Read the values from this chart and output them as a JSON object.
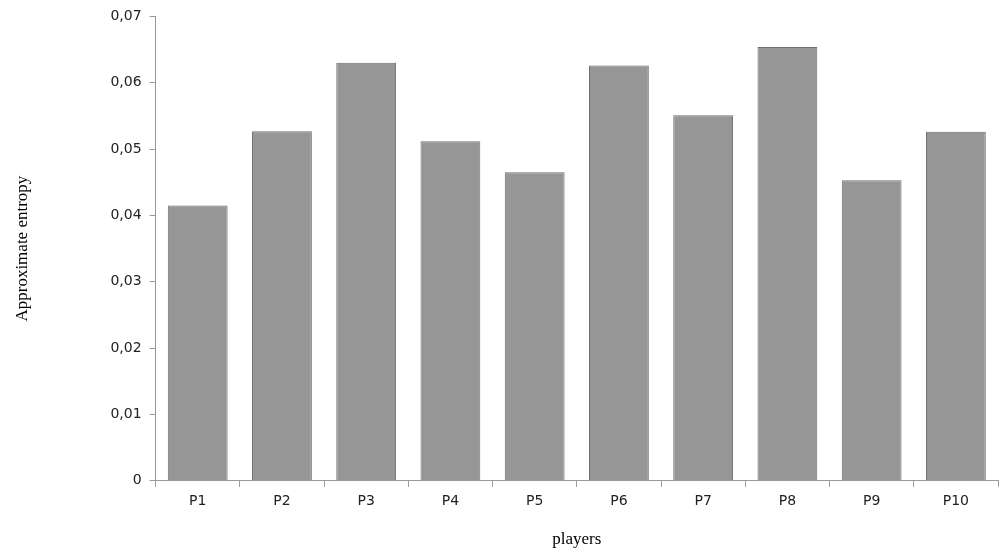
{
  "chart_data": {
    "type": "bar",
    "xlabel": "players",
    "ylabel": "Approximate entropy",
    "categories": [
      "P1",
      "P2",
      "P3",
      "P4",
      "P5",
      "P6",
      "P7",
      "P8",
      "P9",
      "P10"
    ],
    "values": [
      0.0415,
      0.0527,
      0.063,
      0.0512,
      0.0465,
      0.0626,
      0.0551,
      0.0654,
      0.0453,
      0.0526
    ],
    "color": "#969696",
    "ylim": [
      0,
      0.07
    ],
    "yticks": [
      0,
      {
        "value": 0.01,
        "label": "0,01"
      },
      {
        "value": 0.02,
        "label": "0,02"
      },
      {
        "value": 0.03,
        "label": "0,03"
      },
      {
        "value": 0.04,
        "label": "0,04"
      },
      {
        "value": 0.05,
        "label": "0,05"
      },
      {
        "value": 0.06,
        "label": "0,06"
      },
      {
        "value": 0.07,
        "label": "0,07"
      }
    ],
    "grid": false,
    "legend": false
  }
}
